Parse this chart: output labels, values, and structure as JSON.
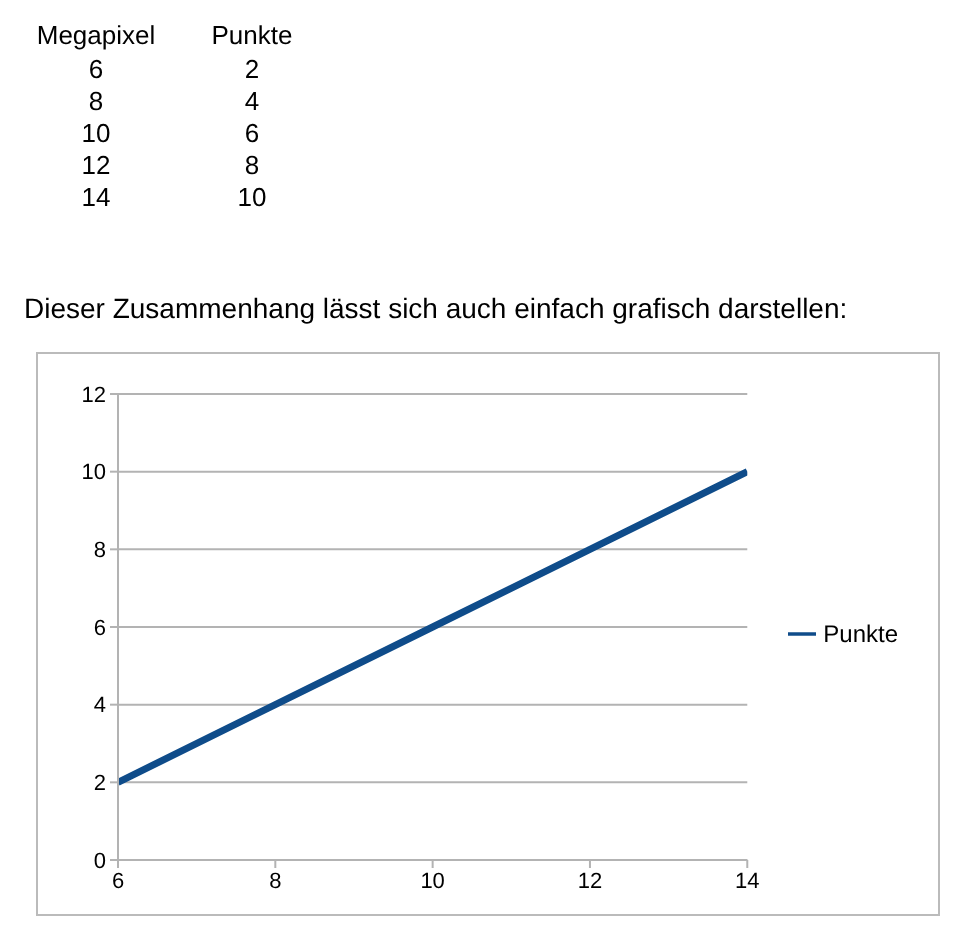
{
  "chart_data": {
    "type": "line",
    "title": "Dieser Zusammenhang lässt sich auch einfach grafisch darstellen:",
    "x": [
      6,
      8,
      10,
      12,
      14
    ],
    "annotations": [
      "Megapixel",
      "Punkte",
      "6",
      "2",
      "8",
      "4",
      "10",
      "6",
      "12",
      "8",
      "14",
      "10"
    ],
    "series": [
      {
        "name": "Punkte",
        "color": "#0f4c8a",
        "values": [
          2,
          4,
          6,
          8,
          10
        ]
      }
    ],
    "xlim": [
      6,
      14
    ],
    "xticks": [
      6,
      8,
      10,
      12,
      14
    ],
    "ylim": [
      0,
      12
    ],
    "yticks": [
      0,
      2,
      4,
      6,
      8,
      10,
      12
    ],
    "grid": "y",
    "legend": "right",
    "marker": "none",
    "line_style": "solid"
  }
}
